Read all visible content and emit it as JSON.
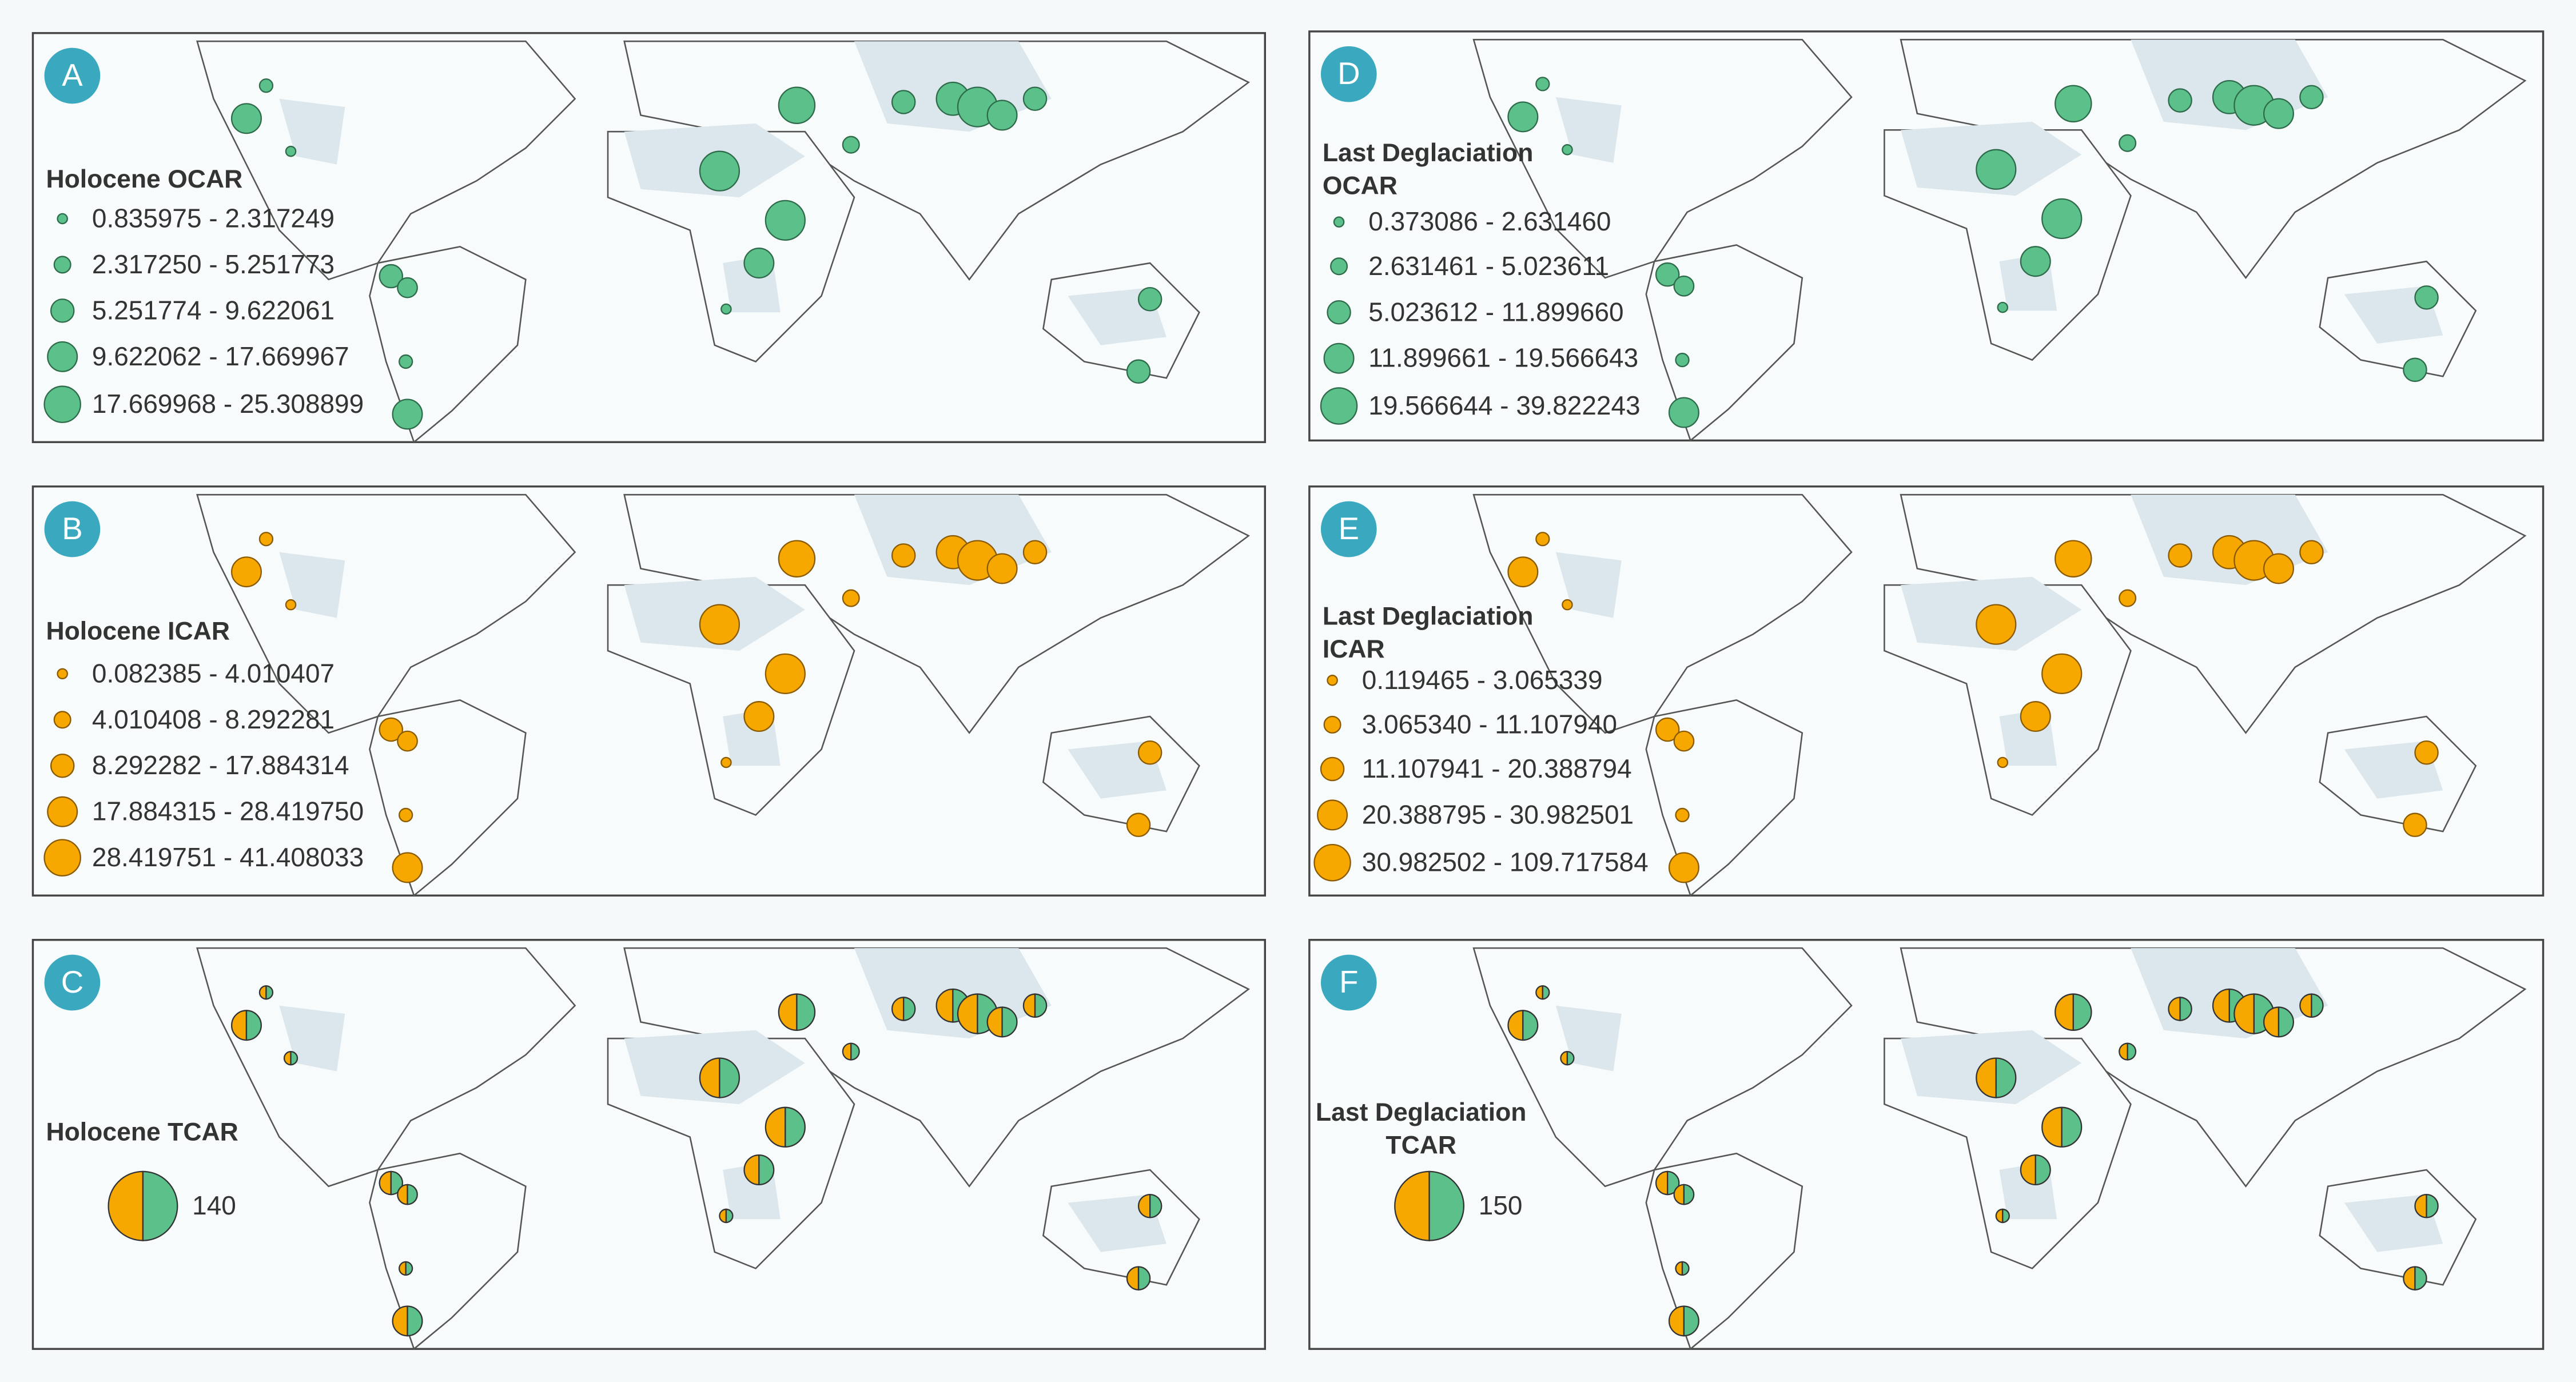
{
  "panels": [
    {
      "label": "A",
      "legend": {
        "title": [
          "Holocene OCAR"
        ],
        "items": [
          "0.835975 - 2.317249",
          "2.317250 - 5.251773",
          "5.251774 - 9.622061",
          "9.622062 - 17.669967",
          "17.669968 - 25.308899"
        ]
      }
    },
    {
      "label": "B",
      "legend": {
        "title": [
          "Holocene ICAR"
        ],
        "items": [
          "0.082385 - 4.010407",
          "4.010408 - 8.292281",
          "8.292282 - 17.884314",
          "17.884315 - 28.419750",
          "28.419751 - 41.408033"
        ]
      }
    },
    {
      "label": "C",
      "legend": {
        "title": [
          "Holocene TCAR"
        ],
        "pie_value": 140
      }
    },
    {
      "label": "D",
      "legend": {
        "title": [
          "Last Deglaciation",
          "OCAR"
        ],
        "items": [
          "0.373086 - 2.631460",
          "2.631461 - 5.023611",
          "5.023612 - 11.899660",
          "11.899661 - 19.566643",
          "19.566644 - 39.822243"
        ]
      }
    },
    {
      "label": "E",
      "legend": {
        "title": [
          "Last Deglaciation",
          "ICAR"
        ],
        "items": [
          "0.119465 - 3.065339",
          "3.065340 - 11.107940",
          "11.107941 - 20.388794",
          "20.388795 - 30.982501",
          "30.982502 - 109.717584"
        ]
      }
    },
    {
      "label": "F",
      "legend": {
        "title": [
          "Last Deglaciation",
          "TCAR"
        ],
        "pie_value": 150
      }
    }
  ]
}
